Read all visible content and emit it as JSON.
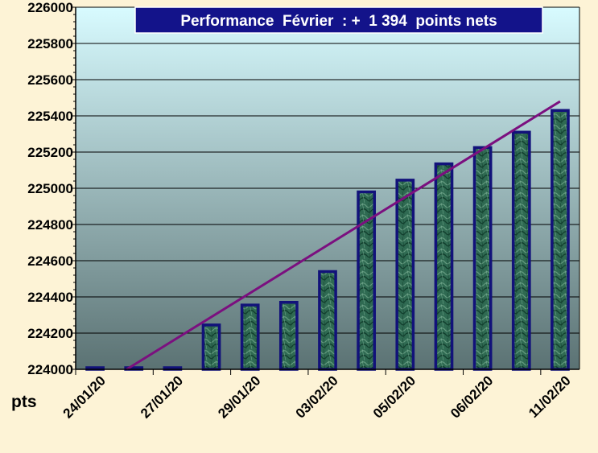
{
  "chart_data": {
    "type": "bar",
    "title": "Performance  Février  : +  1 394  points nets",
    "ylabel": "pts",
    "xlabel": "",
    "ylim": [
      224000,
      226000
    ],
    "y_ticks": [
      224000,
      224200,
      224400,
      224600,
      224800,
      225000,
      225200,
      225400,
      225600,
      225800,
      226000
    ],
    "y_tick_labels": [
      "224000",
      "224200",
      "224400",
      "224600",
      "224800",
      "225000",
      "225200",
      "225400",
      "225600",
      "225800",
      "226000"
    ],
    "x_tick_labels": [
      "24/01/20",
      "27/01/20",
      "29/01/20",
      "03/02/20",
      "05/02/20",
      "06/02/20",
      "11/02/20"
    ],
    "values": [
      224000,
      224000,
      224000,
      224245,
      224355,
      224370,
      224540,
      224980,
      225045,
      225135,
      225225,
      225310,
      225430
    ],
    "trendline": {
      "start": 223892,
      "end": 225480
    },
    "grid": true,
    "legend": "none",
    "colors": {
      "bar_fill": "#2f6a52",
      "bar_stroke": "#12127a",
      "trendline": "#7b0f7f",
      "title_bg": "#13138a",
      "plot_top": "#d8fbff",
      "plot_bottom": "#5b7273",
      "page_bg": "#fdf3d6"
    }
  }
}
